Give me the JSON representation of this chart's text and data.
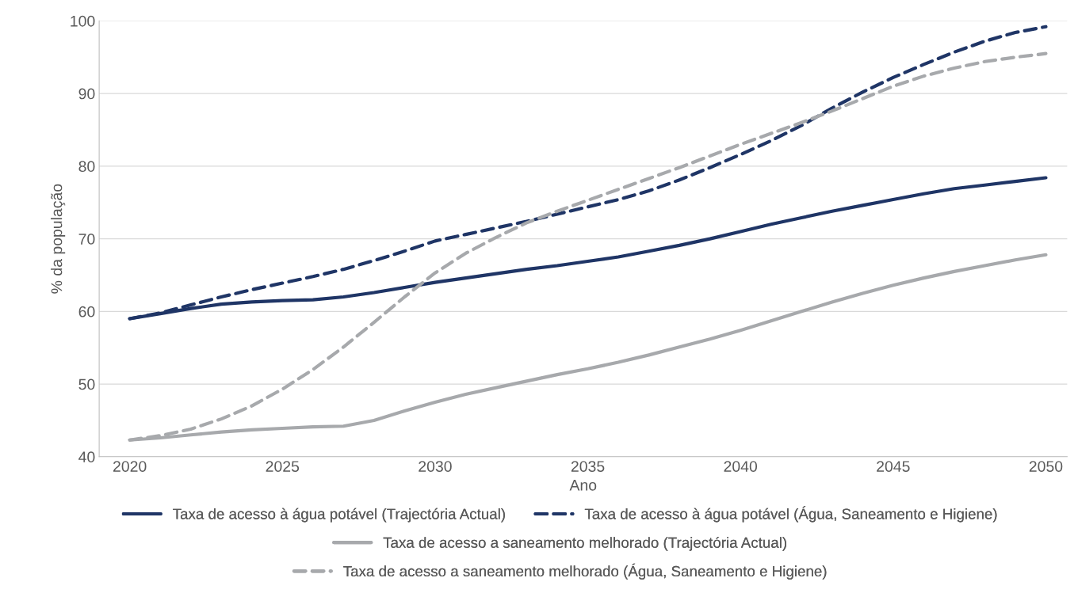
{
  "chart_data": {
    "type": "line",
    "xlabel": "Ano",
    "ylabel": "% da população",
    "x": [
      2020,
      2021,
      2022,
      2023,
      2024,
      2025,
      2026,
      2027,
      2028,
      2029,
      2030,
      2031,
      2032,
      2033,
      2034,
      2035,
      2036,
      2037,
      2038,
      2039,
      2040,
      2041,
      2042,
      2043,
      2044,
      2045,
      2046,
      2047,
      2048,
      2049,
      2050
    ],
    "series": [
      {
        "name": "Taxa de acesso à água potável (Trajectória Actual)",
        "color": "#1f3566",
        "line_style": "solid",
        "values": [
          59,
          59.7,
          60.4,
          61,
          61.3,
          61.5,
          61.6,
          62,
          62.6,
          63.3,
          64,
          64.6,
          65.2,
          65.8,
          66.3,
          66.9,
          67.5,
          68.3,
          69.1,
          70,
          71,
          72,
          72.9,
          73.8,
          74.6,
          75.4,
          76.2,
          76.9,
          77.4,
          77.9,
          78.4
        ]
      },
      {
        "name": "Taxa de acesso à água potável (Água, Saneamento e Higiene)",
        "color": "#1f3566",
        "line_style": "dashed",
        "values": [
          59,
          59.8,
          60.9,
          62,
          63,
          63.9,
          64.8,
          65.8,
          67,
          68.3,
          69.7,
          70.6,
          71.5,
          72.4,
          73.4,
          74.4,
          75.4,
          76.6,
          78.1,
          79.8,
          81.6,
          83.5,
          85.6,
          88,
          90.2,
          92.2,
          94,
          95.7,
          97.2,
          98.4,
          99.2
        ]
      },
      {
        "name": "Taxa de acesso a saneamento melhorado (Trajectória Actual)",
        "color": "#a7a9ac",
        "line_style": "solid",
        "values": [
          42.3,
          42.6,
          43,
          43.4,
          43.7,
          43.9,
          44.1,
          44.2,
          45,
          46.3,
          47.5,
          48.6,
          49.5,
          50.4,
          51.3,
          52.1,
          53,
          54,
          55.1,
          56.2,
          57.4,
          58.7,
          60,
          61.3,
          62.5,
          63.6,
          64.6,
          65.5,
          66.3,
          67.1,
          67.8
        ]
      },
      {
        "name": "Taxa de acesso a saneamento melhorado (Água, Saneamento e Higiene)",
        "color": "#a7a9ac",
        "line_style": "dashed",
        "values": [
          42.3,
          42.9,
          43.8,
          45.2,
          47,
          49.3,
          52,
          55.1,
          58.5,
          62,
          65.3,
          68,
          70.2,
          72.2,
          73.8,
          75.3,
          76.8,
          78.3,
          79.8,
          81.4,
          83,
          84.5,
          86,
          87.6,
          89.3,
          91,
          92.4,
          93.5,
          94.4,
          95,
          95.5
        ]
      }
    ],
    "xlim": [
      2019,
      2050.7
    ],
    "xticks": [
      2020,
      2025,
      2030,
      2035,
      2040,
      2045,
      2050
    ],
    "ylim": [
      40,
      100
    ],
    "yticks": [
      40,
      50,
      60,
      70,
      80,
      90,
      100
    ],
    "grid": "y",
    "legend": "bottom",
    "marker": "none"
  }
}
